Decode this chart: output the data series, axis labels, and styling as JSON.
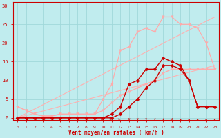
{
  "xlabel": "Vent moyen/en rafales ( km/h )",
  "background_color": "#c0ecee",
  "grid_color": "#a0d8da",
  "x_ticks": [
    0,
    1,
    2,
    3,
    4,
    5,
    6,
    7,
    8,
    9,
    10,
    11,
    12,
    13,
    14,
    15,
    16,
    17,
    18,
    19,
    20,
    21,
    22,
    23
  ],
  "y_ticks": [
    0,
    5,
    10,
    15,
    20,
    25,
    30
  ],
  "ylim": [
    -0.5,
    31
  ],
  "xlim": [
    -0.5,
    23.5
  ],
  "lines": [
    {
      "x": [
        0,
        23
      ],
      "y": [
        0,
        14
      ],
      "color": "#ffb0b0",
      "marker": null,
      "linewidth": 0.8,
      "markersize": 0
    },
    {
      "x": [
        0,
        23
      ],
      "y": [
        0,
        27
      ],
      "color": "#ffb0b0",
      "marker": null,
      "linewidth": 0.8,
      "markersize": 0
    },
    {
      "x": [
        0,
        1,
        2,
        3,
        4,
        5,
        6,
        7,
        8,
        9,
        10,
        11,
        12,
        13,
        14,
        15,
        16,
        17,
        18,
        19,
        20,
        21,
        22,
        23
      ],
      "y": [
        3,
        2,
        1,
        0.5,
        0.5,
        1,
        1,
        1,
        1,
        1,
        5,
        9,
        18,
        19,
        23,
        24,
        23,
        27,
        27,
        25,
        25,
        24,
        20,
        13
      ],
      "color": "#ffaaaa",
      "marker": "v",
      "linewidth": 0.9,
      "markersize": 2.5
    },
    {
      "x": [
        0,
        1,
        2,
        3,
        4,
        5,
        6,
        7,
        8,
        9,
        10,
        11,
        12,
        13,
        14,
        15,
        16,
        17,
        18,
        19,
        20,
        21,
        22,
        23
      ],
      "y": [
        3,
        2,
        1,
        0.5,
        0.5,
        1,
        1,
        1,
        1,
        1,
        2,
        4,
        6,
        7,
        8,
        9,
        10,
        12,
        13,
        13,
        13,
        13,
        13,
        13
      ],
      "color": "#ffaaaa",
      "marker": "v",
      "linewidth": 0.9,
      "markersize": 2.5
    },
    {
      "x": [
        0,
        1,
        2,
        3,
        4,
        5,
        6,
        7,
        8,
        9,
        10,
        11,
        12,
        13,
        14,
        15,
        16,
        17,
        18,
        19,
        20,
        21,
        22,
        23
      ],
      "y": [
        0,
        0,
        0,
        0,
        0,
        0,
        0,
        0,
        0,
        0,
        0,
        1,
        3,
        9,
        10,
        13,
        13,
        16,
        15,
        14,
        10,
        3,
        3,
        3
      ],
      "color": "#cc0000",
      "marker": "D",
      "linewidth": 1.0,
      "markersize": 2.5
    },
    {
      "x": [
        0,
        1,
        2,
        3,
        4,
        5,
        6,
        7,
        8,
        9,
        10,
        11,
        12,
        13,
        14,
        15,
        16,
        17,
        18,
        19,
        20,
        21,
        22,
        23
      ],
      "y": [
        0,
        0,
        0,
        0,
        0,
        0,
        0,
        0,
        0,
        0,
        0,
        0,
        1,
        3,
        5,
        8,
        10,
        14,
        14,
        13,
        10,
        3,
        3,
        3
      ],
      "color": "#cc0000",
      "marker": "D",
      "linewidth": 1.0,
      "markersize": 2.5
    }
  ],
  "arrow_angles_deg": [
    170,
    170,
    165,
    160,
    155,
    150,
    145,
    140,
    135,
    130,
    0,
    10,
    20,
    30,
    40,
    50,
    60,
    70,
    80,
    90,
    90,
    90,
    90,
    90
  ]
}
